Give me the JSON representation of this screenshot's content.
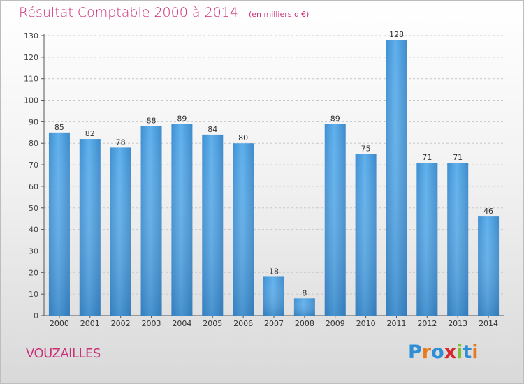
{
  "chart_data": {
    "type": "bar",
    "title": "Résultat Comptable 2000 à 2014",
    "subtitle": "(en milliers d'€)",
    "categories": [
      "2000",
      "2001",
      "2002",
      "2003",
      "2004",
      "2005",
      "2006",
      "2007",
      "2008",
      "2009",
      "2010",
      "2011",
      "2012",
      "2013",
      "2014"
    ],
    "values": [
      85,
      82,
      78,
      88,
      89,
      84,
      80,
      18,
      8,
      89,
      75,
      128,
      71,
      71,
      46
    ],
    "ylim": [
      0,
      130
    ],
    "yticks": [
      0,
      10,
      20,
      30,
      40,
      50,
      60,
      70,
      80,
      90,
      100,
      110,
      120,
      130
    ],
    "grid": true,
    "bar_color": "#4a9fe0",
    "xlabel": "",
    "ylabel": ""
  },
  "footer": {
    "place_name": "VOUZAILLES",
    "logo_text": "Proxiti"
  },
  "colors": {
    "title": "#cc2f7a",
    "logo": [
      "#2f8fd6",
      "#e87a1e",
      "#2f8fd6",
      "#d9262c",
      "#7bbf3a",
      "#2f8fd6",
      "#e87a1e"
    ]
  }
}
